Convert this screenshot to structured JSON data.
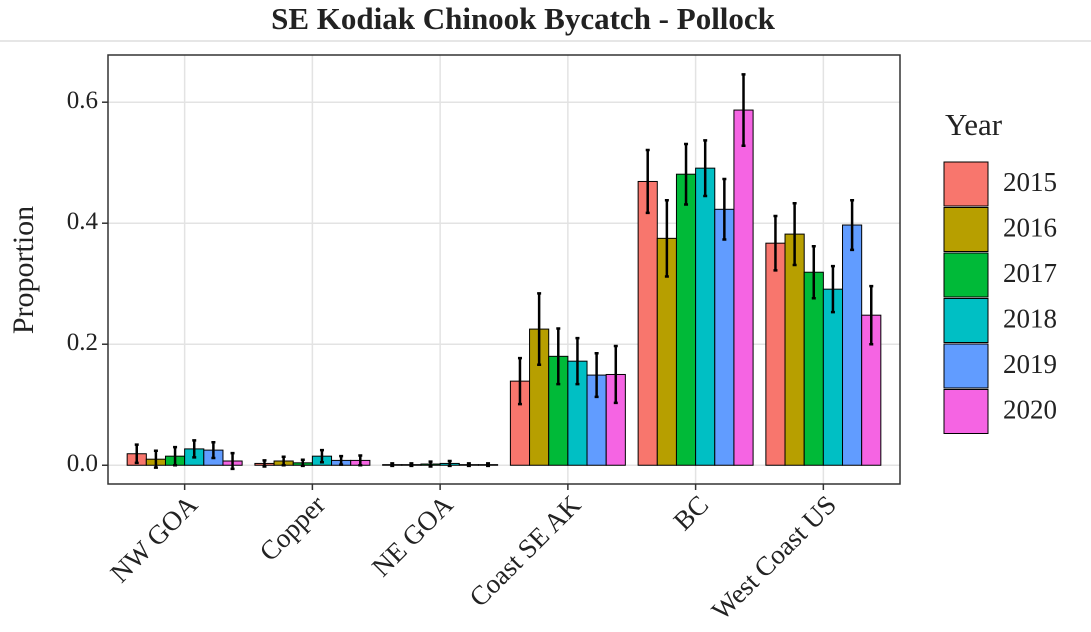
{
  "chart_data": {
    "type": "bar",
    "title": "SE Kodiak Chinook Bycatch - Pollock",
    "y_label": "Proportion",
    "legend_title": "Year",
    "grid": true,
    "categories": [
      "NW GOA",
      "Copper",
      "NE GOA",
      "Coast SE AK",
      "BC",
      "West Coast US"
    ],
    "ylim": [
      -0.031,
      0.678
    ],
    "yticks": [
      {
        "value": 0,
        "label": "0.0"
      },
      0.2,
      0.4,
      0.6
    ],
    "series": [
      {
        "name": "2015",
        "color": "#F8766D",
        "values": [
          0.019,
          0.003,
          0.001,
          0.139,
          0.469,
          0.367
        ],
        "errors": [
          0.015,
          0.005,
          0.002,
          0.038,
          0.052,
          0.045
        ]
      },
      {
        "name": "2016",
        "color": "#B79F00",
        "values": [
          0.01,
          0.007,
          0.001,
          0.225,
          0.375,
          0.382
        ],
        "errors": [
          0.014,
          0.007,
          0.002,
          0.059,
          0.063,
          0.051
        ]
      },
      {
        "name": "2017",
        "color": "#00BA38",
        "values": [
          0.015,
          0.004,
          0.002,
          0.18,
          0.481,
          0.319
        ],
        "errors": [
          0.015,
          0.005,
          0.004,
          0.046,
          0.05,
          0.043
        ]
      },
      {
        "name": "2018",
        "color": "#00BFC4",
        "values": [
          0.027,
          0.015,
          0.003,
          0.172,
          0.491,
          0.291
        ],
        "errors": [
          0.014,
          0.01,
          0.004,
          0.038,
          0.046,
          0.038
        ]
      },
      {
        "name": "2019",
        "color": "#619CFF",
        "values": [
          0.025,
          0.008,
          0.001,
          0.149,
          0.423,
          0.397
        ],
        "errors": [
          0.013,
          0.007,
          0.002,
          0.036,
          0.05,
          0.041
        ]
      },
      {
        "name": "2020",
        "color": "#F564E3",
        "values": [
          0.007,
          0.008,
          0.001,
          0.15,
          0.587,
          0.248
        ],
        "errors": [
          0.013,
          0.008,
          0.002,
          0.047,
          0.059,
          0.048
        ]
      }
    ]
  }
}
